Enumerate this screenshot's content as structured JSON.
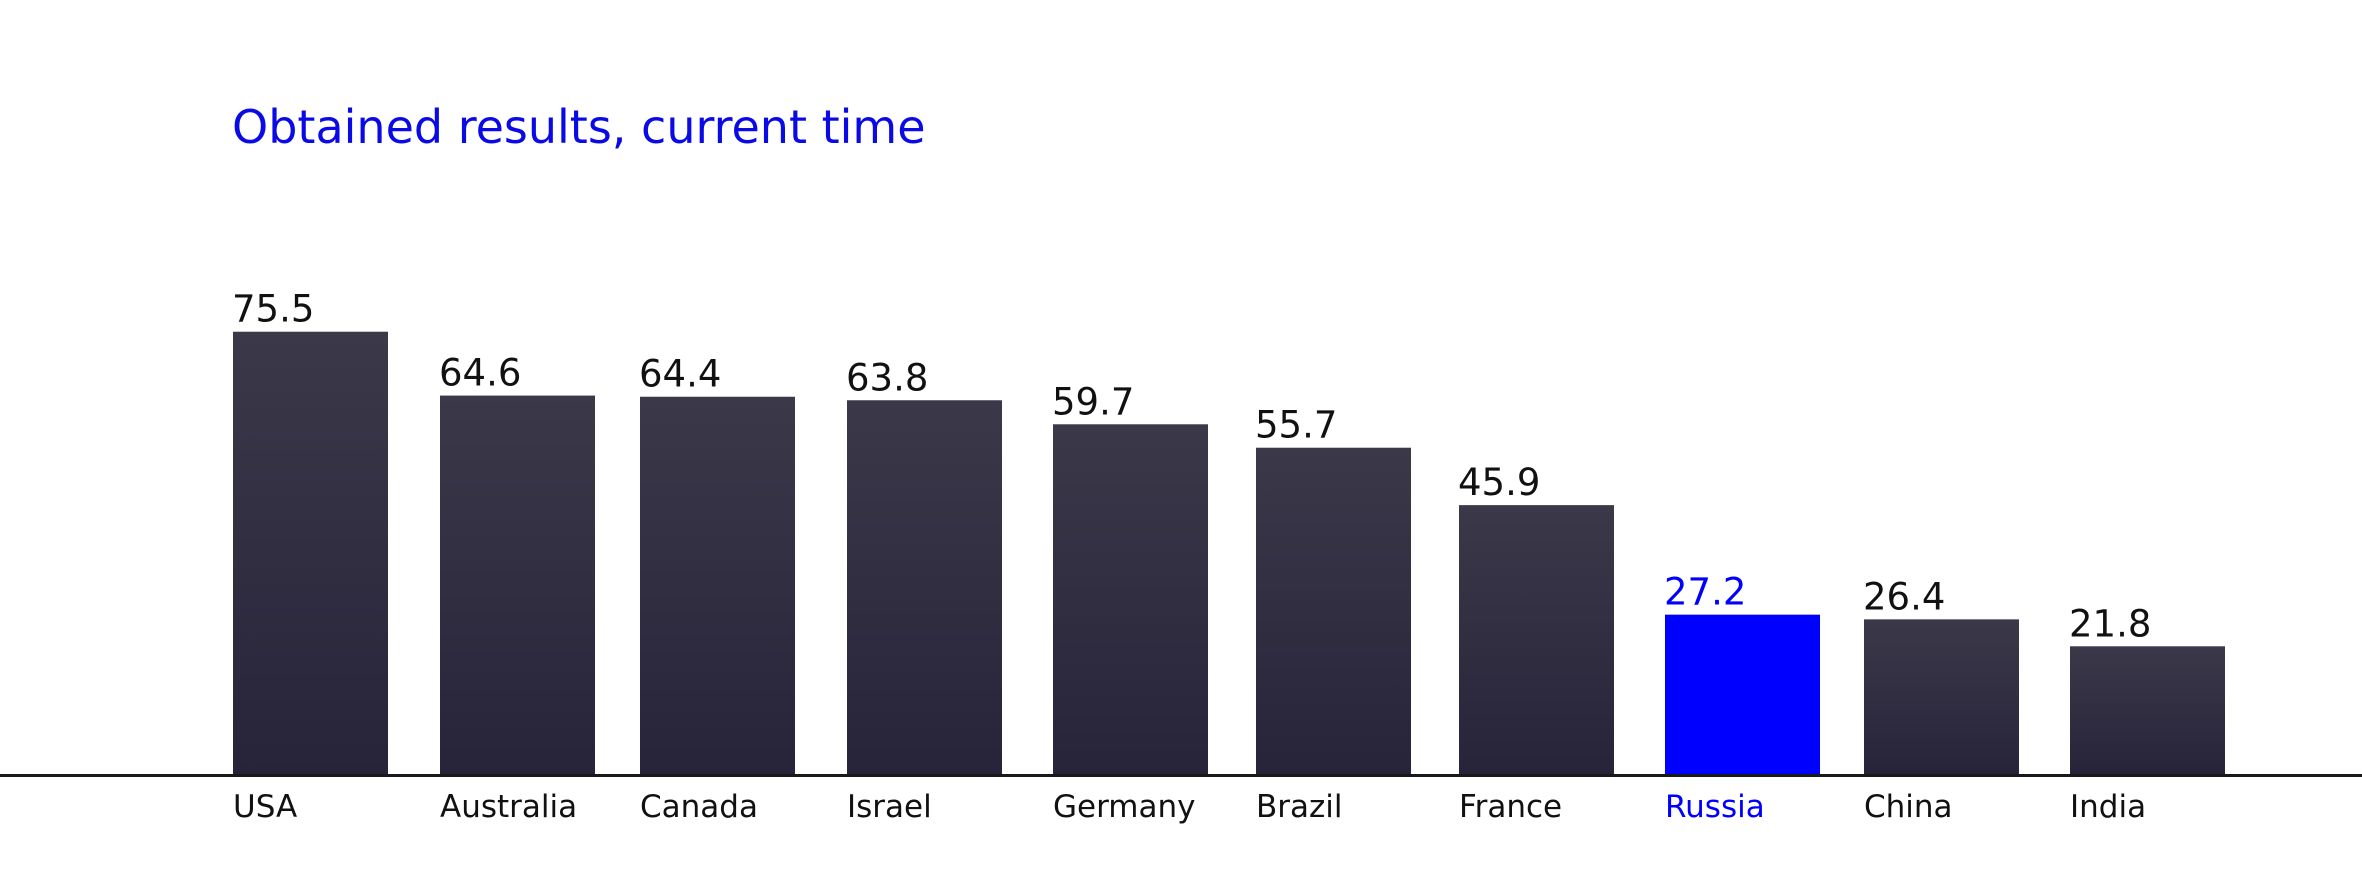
{
  "colors": {
    "bar": "#2f2c3d",
    "bar_top": "#3b3849",
    "bar_bottom": "#27243a",
    "highlight": "#0000ff",
    "text": "#111111",
    "axis": "#1a1a1a",
    "title": "#0a0ae6"
  },
  "chart_data": {
    "type": "bar",
    "title": "Obtained results, current time",
    "xlabel": "",
    "ylabel": "",
    "ylim": [
      0,
      100
    ],
    "grid": false,
    "legend": "none",
    "highlight_category": "Russia",
    "categories": [
      "USA",
      "Australia",
      "Canada",
      "Israel",
      "Germany",
      "Brazil",
      "France",
      "Russia",
      "China",
      "India"
    ],
    "values": [
      75.5,
      64.6,
      64.4,
      63.8,
      59.7,
      55.7,
      45.9,
      27.2,
      26.4,
      21.8
    ],
    "data_labels": [
      "75.5",
      "64.6",
      "64.4",
      "63.8",
      "59.7",
      "55.7",
      "45.9",
      "27.2",
      "26.4",
      "21.8"
    ]
  }
}
